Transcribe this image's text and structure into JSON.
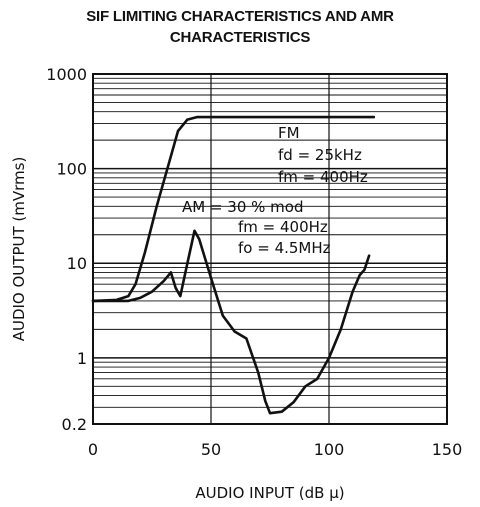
{
  "chart_data": {
    "type": "line",
    "title_lines": [
      "SIF LIMITING CHARACTERISTICS AND AMR",
      "CHARACTERISTICS"
    ],
    "xlabel": "AUDIO  INPUT  (dB µ)",
    "ylabel": "AUDIO  OUTPUT  (mVrms)",
    "x_ticks": [
      0,
      50,
      100,
      150
    ],
    "y_ticks": [
      {
        "v": 1000,
        "t": "1000"
      },
      {
        "v": 100,
        "t": "100"
      },
      {
        "v": 10,
        "t": "10"
      },
      {
        "v": 1,
        "t": "1"
      },
      {
        "v": 0.2,
        "t": "0.2"
      }
    ],
    "xlim": [
      0,
      150
    ],
    "ylim": [
      0.2,
      1000
    ],
    "y_scale": "log",
    "grid": true,
    "series": [
      {
        "x": [
          0,
          10,
          15,
          18,
          22,
          27,
          32,
          36,
          40,
          44,
          50,
          60,
          80,
          100,
          119
        ],
        "y": [
          4,
          4.1,
          4.5,
          6,
          13,
          40,
          110,
          250,
          330,
          350,
          350,
          350,
          350,
          350,
          350
        ]
      },
      {
        "x": [
          0,
          15,
          20,
          25,
          30,
          33,
          35,
          37,
          40,
          43,
          45,
          50,
          55,
          60,
          65,
          70,
          73,
          75,
          80,
          85,
          90,
          95,
          100,
          105,
          110,
          113,
          115,
          117
        ],
        "y": [
          4,
          4,
          4.3,
          5,
          6.5,
          8,
          5.5,
          4.5,
          10,
          22,
          18,
          7,
          2.8,
          1.9,
          1.6,
          0.7,
          0.35,
          0.26,
          0.27,
          0.34,
          0.5,
          0.6,
          1.0,
          2.0,
          5.0,
          7.5,
          8.5,
          12
        ]
      }
    ],
    "annotations": {
      "fm": {
        "label": "FM",
        "fd": "fd = 25kHz",
        "fm": "fm = 400Hz"
      },
      "am": {
        "label": "AM = 30 % mod",
        "fm": "fm = 400Hz",
        "fo": "fo = 4.5MHz"
      }
    }
  }
}
